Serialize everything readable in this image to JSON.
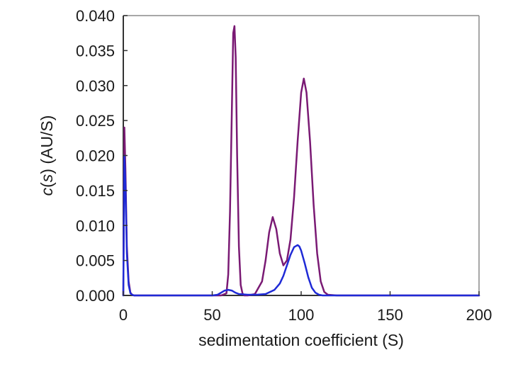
{
  "chart_data": {
    "type": "line",
    "title": "",
    "xlabel": "sedimentation coefficient (S)",
    "ylabel": {
      "italic_part": "c",
      "open_paren": "(",
      "italic_var": "s",
      "rest": ") (AU/S)"
    },
    "xlim": [
      0,
      200
    ],
    "ylim": [
      0,
      0.04
    ],
    "x_ticks": [
      0,
      50,
      100,
      150,
      200
    ],
    "x_tick_labels": [
      "0",
      "50",
      "100",
      "150",
      "200"
    ],
    "y_ticks": [
      0,
      0.005,
      0.01,
      0.015,
      0.02,
      0.025,
      0.03,
      0.035,
      0.04
    ],
    "y_tick_labels": [
      "0.000",
      "0.005",
      "0.010",
      "0.015",
      "0.020",
      "0.025",
      "0.030",
      "0.035",
      "0.040"
    ],
    "grid": false,
    "legend": "none",
    "series": [
      {
        "color": "#7a1a74",
        "x": [
          0,
          0.6,
          1.2,
          2,
          3,
          4,
          5,
          6,
          8,
          10,
          20,
          40,
          55,
          58,
          59,
          60,
          61,
          61.8,
          62.5,
          63.2,
          64,
          65,
          66,
          67,
          68,
          70,
          74,
          78,
          80,
          82,
          84,
          86,
          88,
          90,
          92,
          94,
          96,
          98,
          100,
          101.5,
          103,
          105,
          107,
          109,
          111,
          113,
          115,
          120,
          130,
          150,
          200
        ],
        "y": [
          0.0,
          0.024,
          0.018,
          0.007,
          0.002,
          0.0004,
          0.0001,
          0.0,
          0.0,
          0.0,
          0.0,
          0.0,
          0.0,
          0.0003,
          0.003,
          0.012,
          0.026,
          0.0375,
          0.0385,
          0.034,
          0.02,
          0.007,
          0.0015,
          0.0003,
          0.0,
          0.0,
          0.0002,
          0.002,
          0.005,
          0.009,
          0.0112,
          0.0095,
          0.006,
          0.0043,
          0.005,
          0.008,
          0.014,
          0.022,
          0.029,
          0.031,
          0.029,
          0.022,
          0.013,
          0.006,
          0.002,
          0.0005,
          0.0001,
          0.0,
          0.0,
          0.0,
          0.0
        ]
      },
      {
        "color": "#1f2ad6",
        "x": [
          0,
          0.6,
          1.2,
          2,
          3,
          4,
          5,
          6,
          8,
          10,
          20,
          40,
          50,
          53,
          55,
          57,
          59,
          61,
          63,
          65,
          70,
          75,
          80,
          85,
          88,
          90,
          92,
          94,
          96,
          98,
          99,
          100,
          102,
          104,
          106,
          108,
          110,
          112,
          115,
          120,
          130,
          150,
          200
        ],
        "y": [
          0.0,
          0.02,
          0.016,
          0.006,
          0.0015,
          0.0003,
          0.0001,
          0.0,
          0.0,
          0.0,
          0.0,
          0.0,
          0.0,
          0.0001,
          0.0004,
          0.0007,
          0.0008,
          0.0007,
          0.0004,
          0.0002,
          0.0001,
          0.0001,
          0.0002,
          0.0008,
          0.0017,
          0.0028,
          0.0043,
          0.0058,
          0.0069,
          0.0072,
          0.007,
          0.0064,
          0.0046,
          0.0026,
          0.0011,
          0.0004,
          0.0001,
          0.0,
          0.0,
          0.0,
          0.0,
          0.0,
          0.0
        ]
      }
    ]
  }
}
